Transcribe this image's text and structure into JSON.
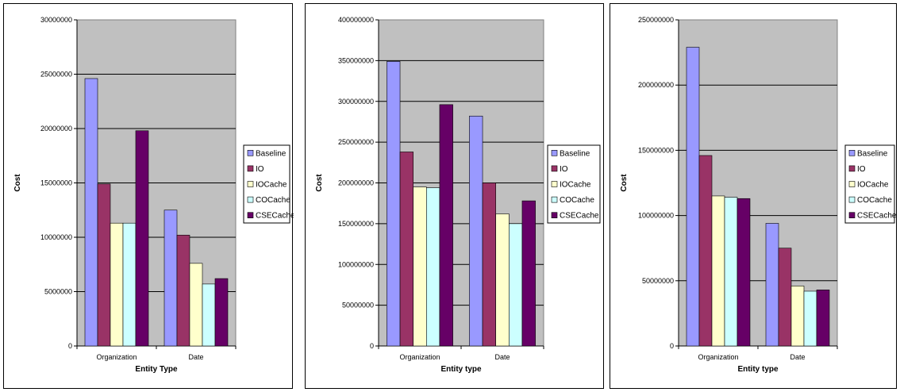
{
  "chart_data": [
    {
      "type": "bar",
      "xlabel": "Entity Type",
      "ylabel": "Cost",
      "categories": [
        "Organization",
        "Date"
      ],
      "ylim": [
        0,
        30000000
      ],
      "yticks": [
        0,
        5000000,
        10000000,
        15000000,
        20000000,
        25000000,
        30000000
      ],
      "grid": true,
      "legend": "right",
      "series": [
        {
          "name": "Baseline",
          "values": [
            24600000,
            12500000
          ]
        },
        {
          "name": "IO",
          "values": [
            14900000,
            10200000
          ]
        },
        {
          "name": "IOCache",
          "values": [
            11300000,
            7600000
          ]
        },
        {
          "name": "COCache",
          "values": [
            11300000,
            5700000
          ]
        },
        {
          "name": "CSECache",
          "values": [
            19800000,
            6200000
          ]
        }
      ]
    },
    {
      "type": "bar",
      "xlabel": "Entity type",
      "ylabel": "Cost",
      "categories": [
        "Organization",
        "Date"
      ],
      "ylim": [
        0,
        400000000
      ],
      "yticks": [
        0,
        50000000,
        100000000,
        150000000,
        200000000,
        250000000,
        300000000,
        350000000,
        400000000
      ],
      "grid": true,
      "legend": "right",
      "series": [
        {
          "name": "Baseline",
          "values": [
            349000000,
            282000000
          ]
        },
        {
          "name": "IO",
          "values": [
            238000000,
            200000000
          ]
        },
        {
          "name": "IOCache",
          "values": [
            195000000,
            162000000
          ]
        },
        {
          "name": "COCache",
          "values": [
            194000000,
            150000000
          ]
        },
        {
          "name": "CSECache",
          "values": [
            296000000,
            178000000
          ]
        }
      ]
    },
    {
      "type": "bar",
      "xlabel": "Entity type",
      "ylabel": "Cost",
      "categories": [
        "Organization",
        "Date"
      ],
      "ylim": [
        0,
        250000000
      ],
      "yticks": [
        0,
        50000000,
        100000000,
        150000000,
        200000000,
        250000000
      ],
      "grid": true,
      "legend": "right",
      "series": [
        {
          "name": "Baseline",
          "values": [
            229000000,
            94000000
          ]
        },
        {
          "name": "IO",
          "values": [
            146000000,
            75000000
          ]
        },
        {
          "name": "IOCache",
          "values": [
            115000000,
            46000000
          ]
        },
        {
          "name": "COCache",
          "values": [
            114000000,
            42000000
          ]
        },
        {
          "name": "CSECache",
          "values": [
            113000000,
            43000000
          ]
        }
      ]
    }
  ],
  "colors": {
    "Baseline": "#9999ff",
    "IO": "#993366",
    "IOCache": "#ffffcc",
    "COCache": "#ccffff",
    "CSECache": "#660066",
    "plot_background": "#c0c0c0"
  }
}
